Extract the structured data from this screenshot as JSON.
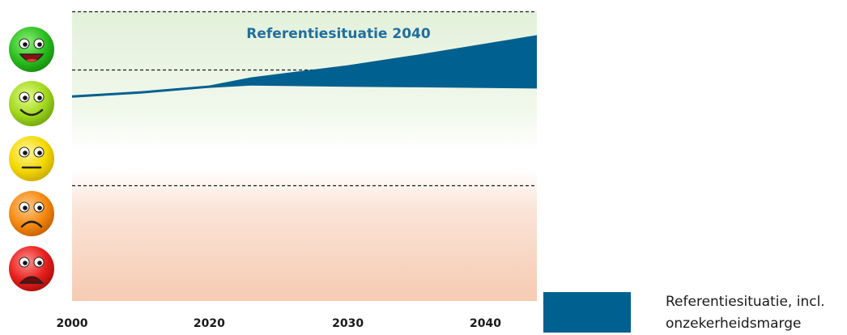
{
  "chart_data": {
    "type": "area",
    "title": "Referentiesituatie 2040",
    "xlabel": "",
    "ylabel": "",
    "xlim": [
      2000,
      2043.5
    ],
    "ylim": [
      0,
      5
    ],
    "x_ticks": [
      {
        "value": 2000,
        "label": "2000"
      },
      {
        "value": 2020,
        "label": "2020"
      },
      {
        "value": 2030,
        "label": "2030"
      },
      {
        "value": 2040,
        "label": "2040"
      }
    ],
    "x_breakpoints": [
      2000,
      2020,
      2043.5
    ],
    "x_tick_value_positions": [
      0,
      0.2952,
      0.5934,
      0.8893
    ],
    "rating_bands": [
      {
        "name": "zeer goed",
        "color": "#e4f2dc",
        "icon": "very-happy-green-smiley-icon"
      },
      {
        "name": "goed",
        "color": "#f0f8ea",
        "icon": "happy-lightgreen-smiley-icon"
      },
      {
        "name": "neutraal",
        "color": "#ffffff",
        "icon": "neutral-yellow-smiley-icon"
      },
      {
        "name": "slecht",
        "color": "#fae2d6",
        "icon": "sad-orange-smiley-icon"
      },
      {
        "name": "zeer slecht",
        "color": "#f6cdb5",
        "icon": "very-sad-red-smiley-icon"
      }
    ],
    "band_thresholds": [
      4,
      3,
      2,
      1
    ],
    "dashed_lines": [
      5,
      4,
      2
    ],
    "series": [
      {
        "name": "Referentiesituatie, incl. onzekerheidsmarge",
        "color": "#00608f",
        "x": [
          2000,
          2010,
          2020,
          2023,
          2030,
          2035,
          2043.5
        ],
        "upper": [
          3.55,
          3.62,
          3.72,
          3.86,
          4.07,
          4.25,
          4.59
        ],
        "lower": [
          3.55,
          3.62,
          3.72,
          3.76,
          3.74,
          3.73,
          3.71
        ]
      }
    ],
    "legend": {
      "position": "bottom-right",
      "lines": [
        "Referentiesituatie, incl.",
        "onzekerheidsmarge"
      ],
      "color": "#00608f"
    },
    "title_color": "#1f6f9f",
    "grid": false
  }
}
